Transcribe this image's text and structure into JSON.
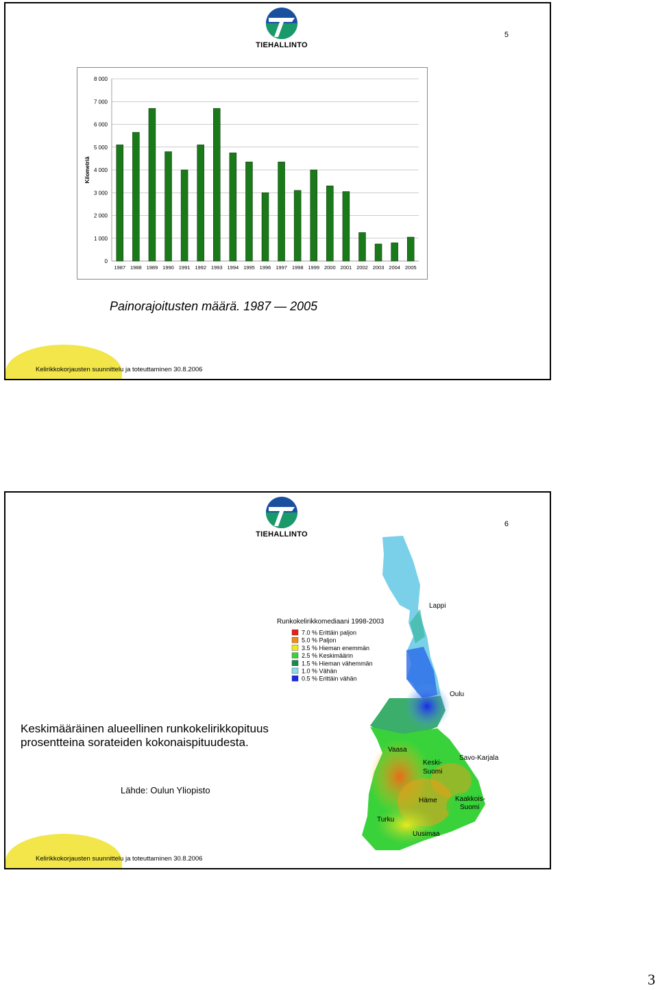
{
  "slide1": {
    "number": "5",
    "logo_text": "TIEHALLINTO",
    "caption": "Painorajoitusten määrä. 1987 — 2005",
    "footer": "Kelirikkokorjausten suunnittelu ja toteuttaminen 30.8.2006"
  },
  "chart_data": {
    "type": "bar",
    "ylabel": "Kilometriä",
    "ylim": [
      0,
      8000
    ],
    "yticks": [
      "0",
      "1 000",
      "2 000",
      "3 000",
      "4 000",
      "5 000",
      "6 000",
      "7 000",
      "8 000"
    ],
    "categories": [
      "1987",
      "1988",
      "1989",
      "1990",
      "1991",
      "1992",
      "1993",
      "1994",
      "1995",
      "1996",
      "1997",
      "1998",
      "1999",
      "2000",
      "2001",
      "2002",
      "2003",
      "2004",
      "2005"
    ],
    "values": [
      5100,
      5650,
      6700,
      4800,
      4000,
      5100,
      6700,
      4750,
      4350,
      3000,
      4350,
      3100,
      4000,
      3300,
      3050,
      1250,
      750,
      800,
      1050
    ],
    "bar_color": "#1a7a1a",
    "grid": true
  },
  "slide2": {
    "number": "6",
    "logo_text": "TIEHALLINTO",
    "description": "Keskimääräinen alueellinen runkokelirikkopituus prosentteina sorateiden kokonaispituudesta.",
    "source": "Lähde: Oulun Yliopisto",
    "footer": "Kelirikkokorjausten suunnittelu ja toteuttaminen 30.8.2006",
    "map": {
      "legend_title": "Runkokelirikkomediaani 1998-2003",
      "legend": [
        {
          "label": "7.0 % Erittäin paljon",
          "color": "#e8201a"
        },
        {
          "label": "5.0 % Paljon",
          "color": "#f08a1a"
        },
        {
          "label": "3.5 % Hieman enemmän",
          "color": "#f0e81a"
        },
        {
          "label": "2.5 % Keskimäärin",
          "color": "#3ad23a"
        },
        {
          "label": "1.5 % Hieman vähemmän",
          "color": "#1a8a4a"
        },
        {
          "label": "1.0 % Vähän",
          "color": "#8adcec"
        },
        {
          "label": "0.5 % Erittäin vähän",
          "color": "#1a2ae8"
        }
      ],
      "regions": [
        "Lappi",
        "Oulu",
        "Vaasa",
        "Keski-",
        "Suomi",
        "Savo-Karjala",
        "Häme",
        "Kaakkois-",
        "Suomi",
        "Turku",
        "Uusimaa"
      ]
    }
  },
  "page_number": "3"
}
